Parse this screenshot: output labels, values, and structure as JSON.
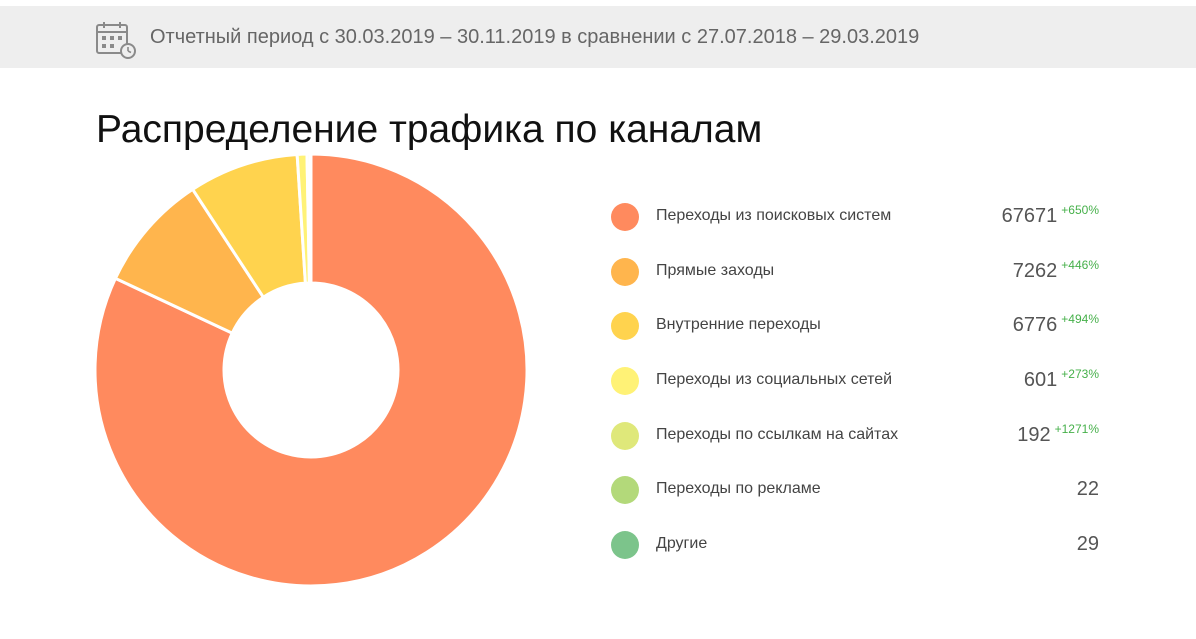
{
  "header": {
    "period_text": "Отчетный период с 30.03.2019 – 30.11.2019 в сравнении с 27.07.2018 – 29.03.2019",
    "icon": "calendar-clock-icon"
  },
  "chart_data": {
    "type": "pie",
    "title": "Распределение трафика по каналам",
    "donut": true,
    "legend_position": "right",
    "categories": [
      "Переходы из поисковых систем",
      "Прямые заходы",
      "Внутренние переходы",
      "Переходы из социальных сетей",
      "Переходы по ссылкам на сайтах",
      "Переходы по рекламе",
      "Другие"
    ],
    "values": [
      67671,
      7262,
      6776,
      601,
      192,
      22,
      29
    ],
    "value_labels": [
      "67671",
      "7262",
      "6776",
      "601",
      "192",
      "22",
      "29"
    ],
    "changes": [
      "+650%",
      "+446%",
      "+494%",
      "+273%",
      "+1271%",
      "",
      ""
    ],
    "colors": [
      "#ff8a5e",
      "#ffb54d",
      "#ffd34e",
      "#fff276",
      "#dfe87a",
      "#b3d97a",
      "#7cc48b"
    ]
  }
}
